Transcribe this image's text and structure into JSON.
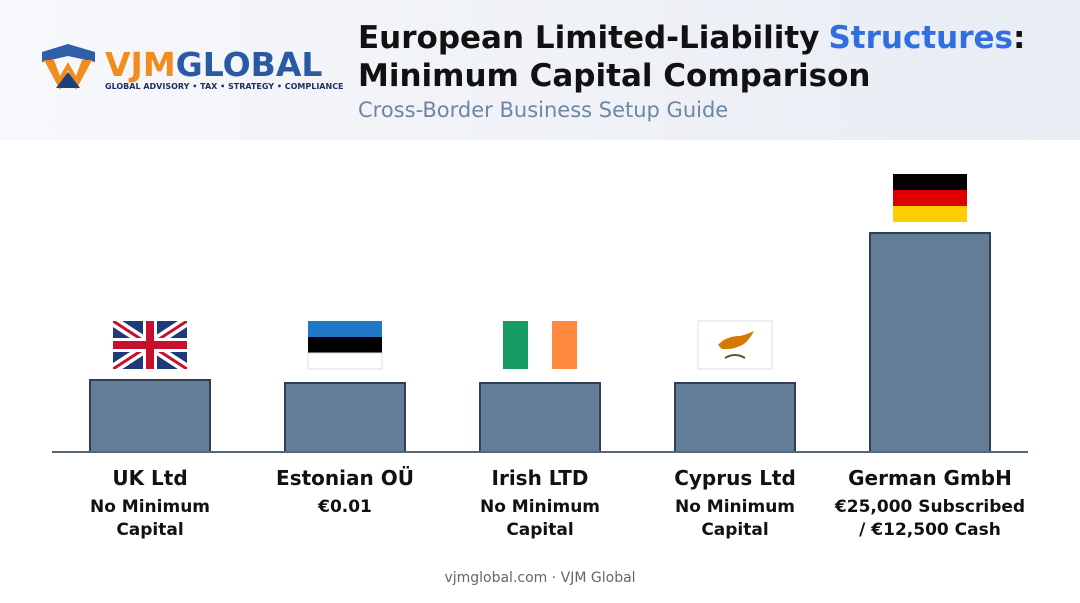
{
  "logo": {
    "part1": "VJM",
    "part2": "GLOBAL",
    "tagline": "GLOBAL ADVISORY • TAX • STRATEGY • COMPLIANCE"
  },
  "header": {
    "title_line1": [
      "European Limited-Liability",
      "Structures",
      ":"
    ],
    "title_line2": "Minimum Capital Comparison",
    "subtitle": "Cross-Border Business Setup Guide"
  },
  "items": [
    {
      "name": "UK Ltd",
      "detail": [
        "No Minimum",
        "Capital"
      ]
    },
    {
      "name": "Estonian OÜ",
      "detail": [
        "€0.01"
      ]
    },
    {
      "name": "Irish LTD",
      "detail": [
        "No Minimum",
        "Capital"
      ]
    },
    {
      "name": "Cyprus Ltd",
      "detail": [
        "No Minimum",
        "Capital"
      ]
    },
    {
      "name": "German GmbH",
      "detail": [
        "€25,000 Subscribed",
        "/ €12,500 Cash"
      ]
    }
  ],
  "footer": "vjmglobal.com · VJM Global"
}
